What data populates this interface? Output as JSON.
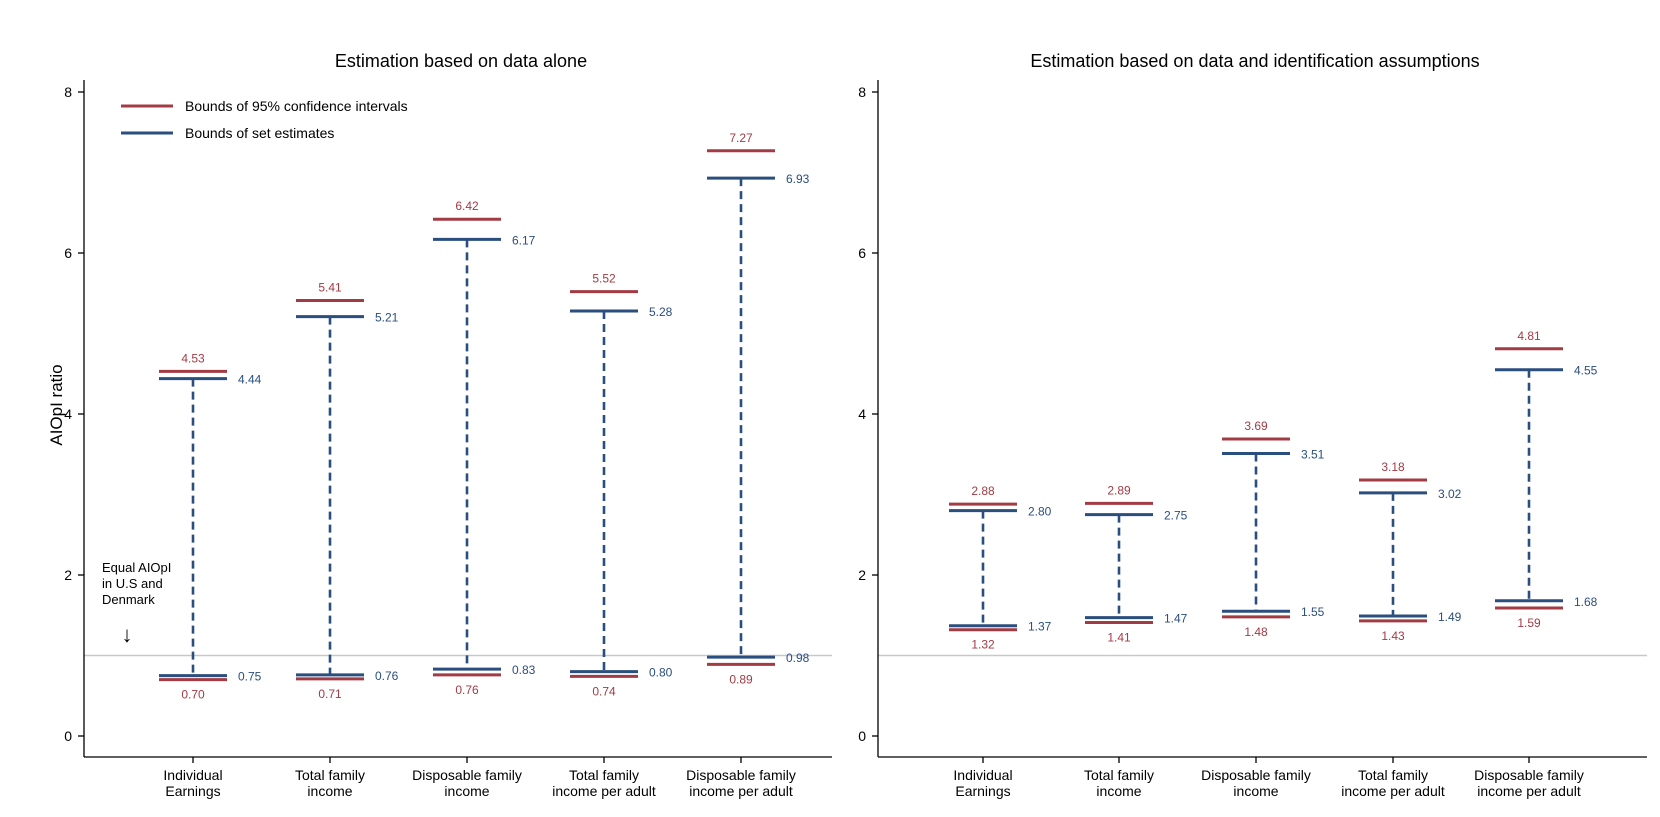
{
  "colors": {
    "ci": "#A23B43",
    "set": "#2A4E7E",
    "axis": "#000000",
    "refline": "#C8C8C8"
  },
  "chart_data": [
    {
      "type": "interval",
      "title": "Estimation based on data alone",
      "xlabel": "",
      "ylabel": "AIOpI ratio",
      "ylim": [
        0,
        8
      ],
      "yticks": [
        0,
        2,
        4,
        6,
        8
      ],
      "grid": false,
      "reference_line": 1,
      "categories": [
        [
          "Individual",
          "Earnings"
        ],
        [
          "Total family",
          "income"
        ],
        [
          "Disposable family",
          "income"
        ],
        [
          "Total family",
          "income per adult"
        ],
        [
          "Disposable family",
          "income per adult"
        ]
      ],
      "series": [
        {
          "name": "Bounds of 95% confidence intervals",
          "lower": [
            0.7,
            0.71,
            0.76,
            0.74,
            0.89
          ],
          "upper": [
            4.53,
            5.41,
            6.42,
            5.52,
            7.27
          ]
        },
        {
          "name": "Bounds of set estimates",
          "lower": [
            0.75,
            0.76,
            0.83,
            0.8,
            0.98
          ],
          "upper": [
            4.44,
            5.21,
            6.17,
            5.28,
            6.93
          ]
        }
      ],
      "legend": {
        "placement": "top-left",
        "entries": [
          "Bounds of 95% confidence intervals",
          "Bounds of set estimates"
        ]
      },
      "annotation": {
        "lines": [
          "Equal AIOpI",
          "in U.S and",
          "Denmark"
        ],
        "arrow": "↓"
      }
    },
    {
      "type": "interval",
      "title": "Estimation based on data and identification assumptions",
      "xlabel": "",
      "ylabel": "",
      "ylim": [
        0,
        8
      ],
      "yticks": [
        0,
        2,
        4,
        6,
        8
      ],
      "grid": false,
      "reference_line": 1,
      "categories": [
        [
          "Individual",
          "Earnings"
        ],
        [
          "Total family",
          "income"
        ],
        [
          "Disposable family",
          "income"
        ],
        [
          "Total family",
          "income per adult"
        ],
        [
          "Disposable family",
          "income per adult"
        ]
      ],
      "series": [
        {
          "name": "Bounds of 95% confidence intervals",
          "lower": [
            1.32,
            1.41,
            1.48,
            1.43,
            1.59
          ],
          "upper": [
            2.88,
            2.89,
            3.69,
            3.18,
            4.81
          ]
        },
        {
          "name": "Bounds of set estimates",
          "lower": [
            1.37,
            1.47,
            1.55,
            1.49,
            1.68
          ],
          "upper": [
            2.8,
            2.75,
            3.51,
            3.02,
            4.55
          ]
        }
      ]
    }
  ]
}
